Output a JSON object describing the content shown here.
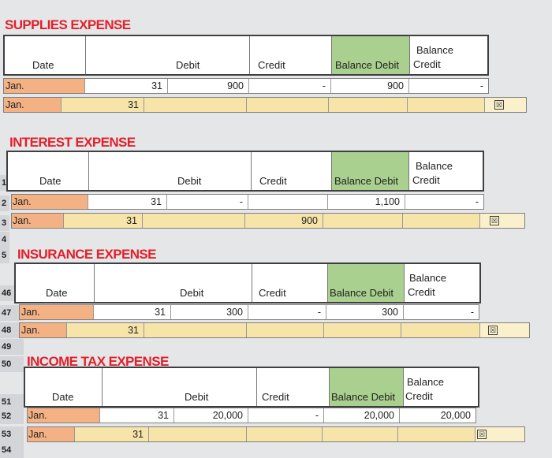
{
  "headers": {
    "date": "Date",
    "debit": "Debit",
    "credit": "Credit",
    "balance_debit": "Balance Debit",
    "balance_credit_top": "Balance",
    "balance_credit_bottom": "Credit"
  },
  "sections": [
    {
      "title": "SUPPLIES EXPENSE",
      "row1": {
        "month": "Jan.",
        "day": "31",
        "debit": "900",
        "credit": "-",
        "balance_debit": "900",
        "balance_credit": "-"
      },
      "row2": {
        "month": "Jan.",
        "day": "31"
      }
    },
    {
      "title": "INTEREST EXPENSE",
      "row1": {
        "month": "Jan.",
        "day": "31",
        "debit": "-",
        "credit": "",
        "balance_debit": "1,100",
        "balance_credit": "-"
      },
      "row2": {
        "month": "Jan.",
        "day": "31",
        "credit": "900"
      }
    },
    {
      "title": "INSURANCE EXPENSE",
      "row1": {
        "month": "Jan.",
        "day": "31",
        "debit": "300",
        "credit": "-",
        "balance_debit": "300",
        "balance_credit": "-"
      },
      "row2": {
        "month": "Jan.",
        "day": "31"
      }
    },
    {
      "title": "INCOME TAX EXPENSE",
      "row1": {
        "month": "Jan.",
        "day": "31",
        "debit": "20,000",
        "credit": "-",
        "balance_debit": "20,000",
        "balance_credit": "20,000"
      },
      "row2": {
        "month": "Jan.",
        "day": "31"
      }
    }
  ],
  "row_numbers": {
    "r1": "1",
    "r2": "2",
    "r3": "3",
    "r4": "4",
    "r5": "5",
    "r46": "46",
    "r47": "47",
    "r48": "48",
    "r49": "49",
    "r50": "50",
    "r51": "51",
    "r52": "52",
    "r53": "53",
    "r54": "54"
  },
  "checkbox_glyph": "☒"
}
